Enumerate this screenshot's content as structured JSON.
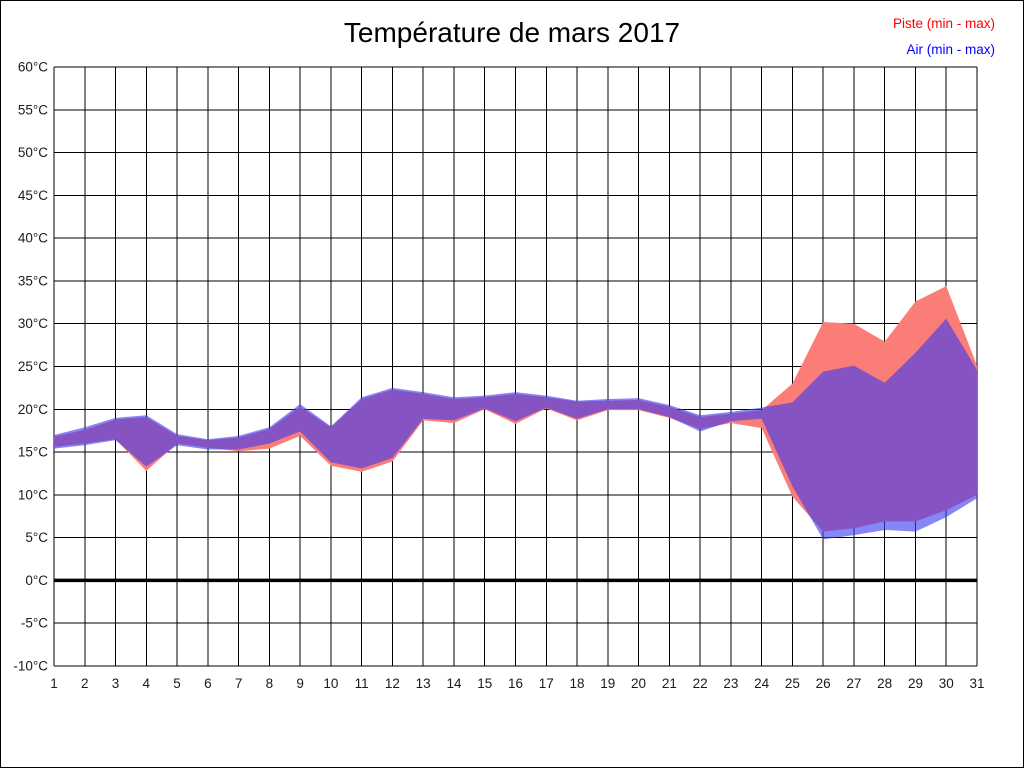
{
  "header": {
    "title": "Température de mars 2017"
  },
  "legend": {
    "items": [
      {
        "id": "piste",
        "label": "Piste (min - max)",
        "color": "#ff0000"
      },
      {
        "id": "air",
        "label": "Air (min - max)",
        "color": "#0000ff"
      }
    ],
    "position": "top-right"
  },
  "chart_data": {
    "type": "area",
    "title": "Température de mars 2017",
    "xlabel": "",
    "ylabel": "°C",
    "x": [
      1,
      2,
      3,
      4,
      5,
      6,
      7,
      8,
      9,
      10,
      11,
      12,
      13,
      14,
      15,
      16,
      17,
      18,
      19,
      20,
      21,
      22,
      23,
      24,
      25,
      26,
      27,
      28,
      29,
      30,
      31
    ],
    "xtick_labels": [
      "1",
      "2",
      "3",
      "4",
      "5",
      "6",
      "7",
      "8",
      "9",
      "10",
      "11",
      "12",
      "13",
      "14",
      "15",
      "16",
      "17",
      "18",
      "19",
      "20",
      "21",
      "22",
      "23",
      "24",
      "25",
      "26",
      "27",
      "28",
      "29",
      "30",
      "31"
    ],
    "ylim": [
      -10,
      60
    ],
    "yticks": [
      {
        "value": 60,
        "label": "60°C"
      },
      {
        "value": 55,
        "label": "55°C"
      },
      {
        "value": 50,
        "label": "50°C"
      },
      {
        "value": 45,
        "label": "45°C"
      },
      {
        "value": 40,
        "label": "40°C"
      },
      {
        "value": 35,
        "label": "35°C"
      },
      {
        "value": 30,
        "label": "30°C"
      },
      {
        "value": 25,
        "label": "25°C"
      },
      {
        "value": 20,
        "label": "20°C"
      },
      {
        "value": 15,
        "label": "15°C"
      },
      {
        "value": 10,
        "label": "10°C"
      },
      {
        "value": 5,
        "label": "5°C"
      },
      {
        "value": 0,
        "label": "0°C"
      },
      {
        "value": -5,
        "label": "-5°C"
      },
      {
        "value": -10,
        "label": "-10°C"
      }
    ],
    "grid": true,
    "grid_color": "#000000",
    "legend_position": "top-right",
    "zero_line": {
      "value": 0,
      "color": "#000000",
      "width": 3.5
    },
    "series": [
      {
        "name": "Piste (min - max)",
        "band": true,
        "fill": "#FB7D77",
        "opacity": 1,
        "legend_color": "#ff0000",
        "min": [
          15.6,
          16.0,
          16.5,
          12.8,
          16.0,
          15.5,
          15.1,
          15.4,
          16.9,
          13.4,
          12.7,
          13.9,
          18.7,
          18.4,
          20.0,
          18.3,
          20.1,
          18.7,
          19.9,
          19.9,
          19.0,
          17.7,
          18.4,
          17.8,
          9.8,
          5.7,
          6.1,
          6.9,
          6.9,
          8.2,
          10.0
        ],
        "max": [
          16.8,
          17.6,
          18.8,
          19.1,
          16.9,
          16.4,
          16.7,
          17.7,
          20.3,
          17.9,
          21.2,
          22.3,
          21.8,
          21.2,
          21.4,
          21.8,
          21.4,
          20.9,
          21.0,
          21.1,
          20.3,
          19.1,
          19.5,
          19.9,
          23.0,
          30.2,
          30.0,
          27.9,
          32.6,
          34.4,
          25.1
        ]
      },
      {
        "name": "Air (min - max)",
        "band": true,
        "fill": "#3C3CF0",
        "opacity": 0.62,
        "legend_color": "#0000ff",
        "min": [
          15.4,
          15.8,
          16.4,
          13.3,
          15.8,
          15.3,
          15.3,
          16.0,
          17.4,
          13.8,
          13.1,
          14.3,
          18.9,
          18.7,
          20.1,
          18.6,
          20.2,
          18.9,
          20.0,
          20.0,
          19.1,
          17.4,
          18.6,
          18.9,
          11.0,
          4.8,
          5.3,
          5.9,
          5.7,
          7.4,
          9.6
        ],
        "max": [
          17.0,
          17.9,
          19.0,
          19.3,
          17.1,
          16.5,
          16.9,
          17.9,
          20.6,
          18.0,
          21.4,
          22.5,
          22.0,
          21.4,
          21.6,
          22.0,
          21.6,
          21.0,
          21.2,
          21.3,
          20.5,
          19.3,
          19.7,
          20.2,
          20.8,
          24.4,
          25.1,
          23.1,
          26.6,
          30.6,
          24.6
        ]
      }
    ]
  }
}
